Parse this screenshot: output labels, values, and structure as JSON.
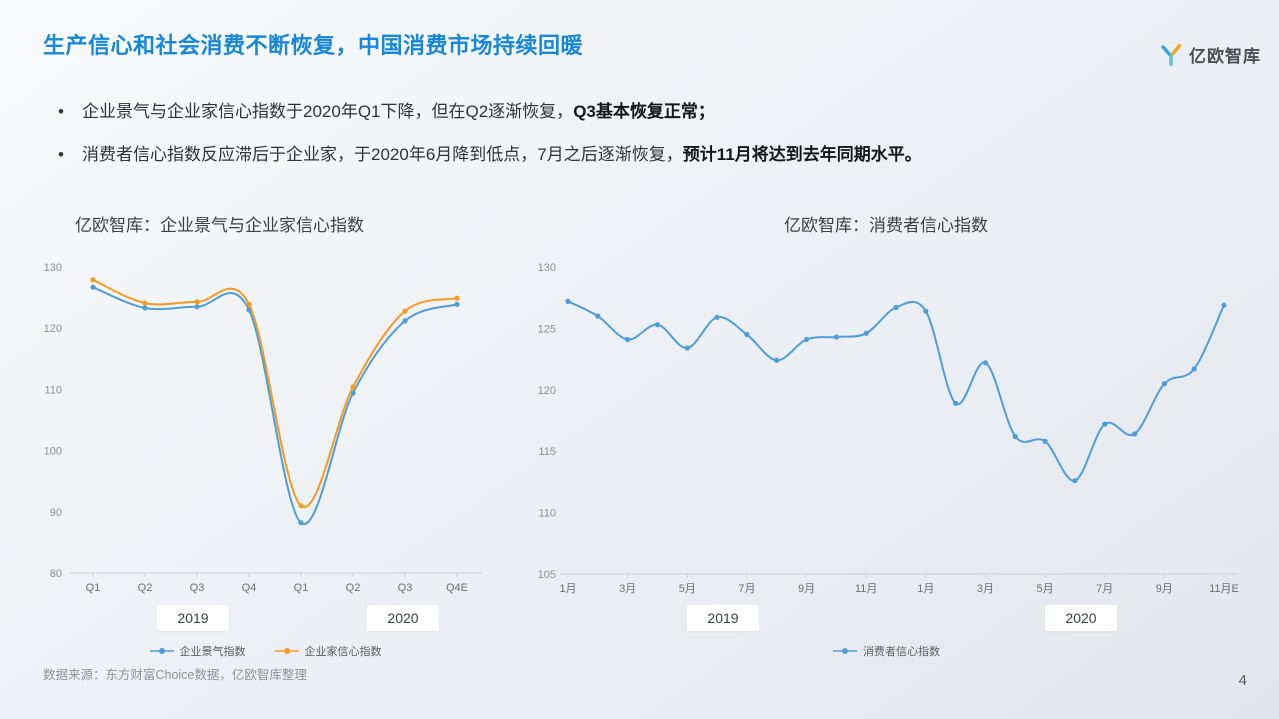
{
  "header": {
    "title": "生产信心和社会消费不断恢复，中国消费市场持续回暖",
    "logo_text": "亿欧智库"
  },
  "bullets": [
    {
      "segments": [
        {
          "text": "企业景气与企业家信心指数于2020年Q1下降，但在Q2逐渐恢复，",
          "bold": false
        },
        {
          "text": "Q3基本恢复正常；",
          "bold": true
        }
      ]
    },
    {
      "segments": [
        {
          "text": "消费者信心指数反应滞后于企业家，于2020年6月降到低点，7月之后逐渐恢复，",
          "bold": false
        },
        {
          "text": "预计11月将达到去年同期水平。",
          "bold": true
        }
      ]
    }
  ],
  "colors": {
    "title_blue": "#1787d9",
    "line_blue": "#4f9ed9",
    "line_orange": "#f59a23",
    "logo_blue": "#2ba7e0",
    "logo_orange": "#f5a623",
    "logo_teal": "#5bc6cc"
  },
  "chart_data": [
    {
      "type": "line",
      "title": "亿欧智库：企业景气与企业家信心指数",
      "x": [
        "Q1",
        "Q2",
        "Q3",
        "Q4",
        "Q1",
        "Q2",
        "Q3",
        "Q4E"
      ],
      "year_labels": [
        "2019",
        "2020"
      ],
      "ylim": [
        80,
        130
      ],
      "yticks": [
        80,
        90,
        100,
        110,
        120,
        130
      ],
      "tick_every": 1,
      "grid": false,
      "smooth": true,
      "legend_position": "bottom",
      "series": [
        {
          "name": "企业景气指数",
          "color": "#4f9ed9",
          "values": [
            126.7,
            123.3,
            123.5,
            123.0,
            88.2,
            109.4,
            121.2,
            123.9
          ]
        },
        {
          "name": "企业家信心指数",
          "color": "#f59a23",
          "values": [
            127.9,
            124.1,
            124.3,
            123.9,
            91.0,
            110.4,
            122.8,
            124.9
          ]
        }
      ]
    },
    {
      "type": "line",
      "title": "亿欧智库：消费者信心指数",
      "x": [
        "1月",
        "2月",
        "3月",
        "4月",
        "5月",
        "6月",
        "7月",
        "8月",
        "9月",
        "10月",
        "11月",
        "12月",
        "1月",
        "2月",
        "3月",
        "4月",
        "5月",
        "6月",
        "7月",
        "8月",
        "9月",
        "10月",
        "11月E"
      ],
      "year_labels": [
        "2019",
        "2020"
      ],
      "ylim": [
        105,
        130
      ],
      "yticks": [
        105,
        110,
        115,
        120,
        125,
        130
      ],
      "tick_every": 2,
      "grid": false,
      "smooth": true,
      "legend_position": "bottom",
      "series": [
        {
          "name": "消费者信心指数",
          "color": "#4f9ed9",
          "values": [
            127.2,
            126.0,
            124.1,
            125.3,
            123.4,
            125.9,
            124.5,
            122.4,
            124.1,
            124.3,
            124.6,
            126.7,
            126.4,
            118.9,
            122.2,
            116.2,
            115.8,
            112.6,
            117.2,
            116.4,
            120.5,
            121.7,
            126.9
          ]
        }
      ]
    }
  ],
  "footer": {
    "source": "数据来源：东方财富Choice数据，亿欧智库整理",
    "page_number": "4"
  }
}
